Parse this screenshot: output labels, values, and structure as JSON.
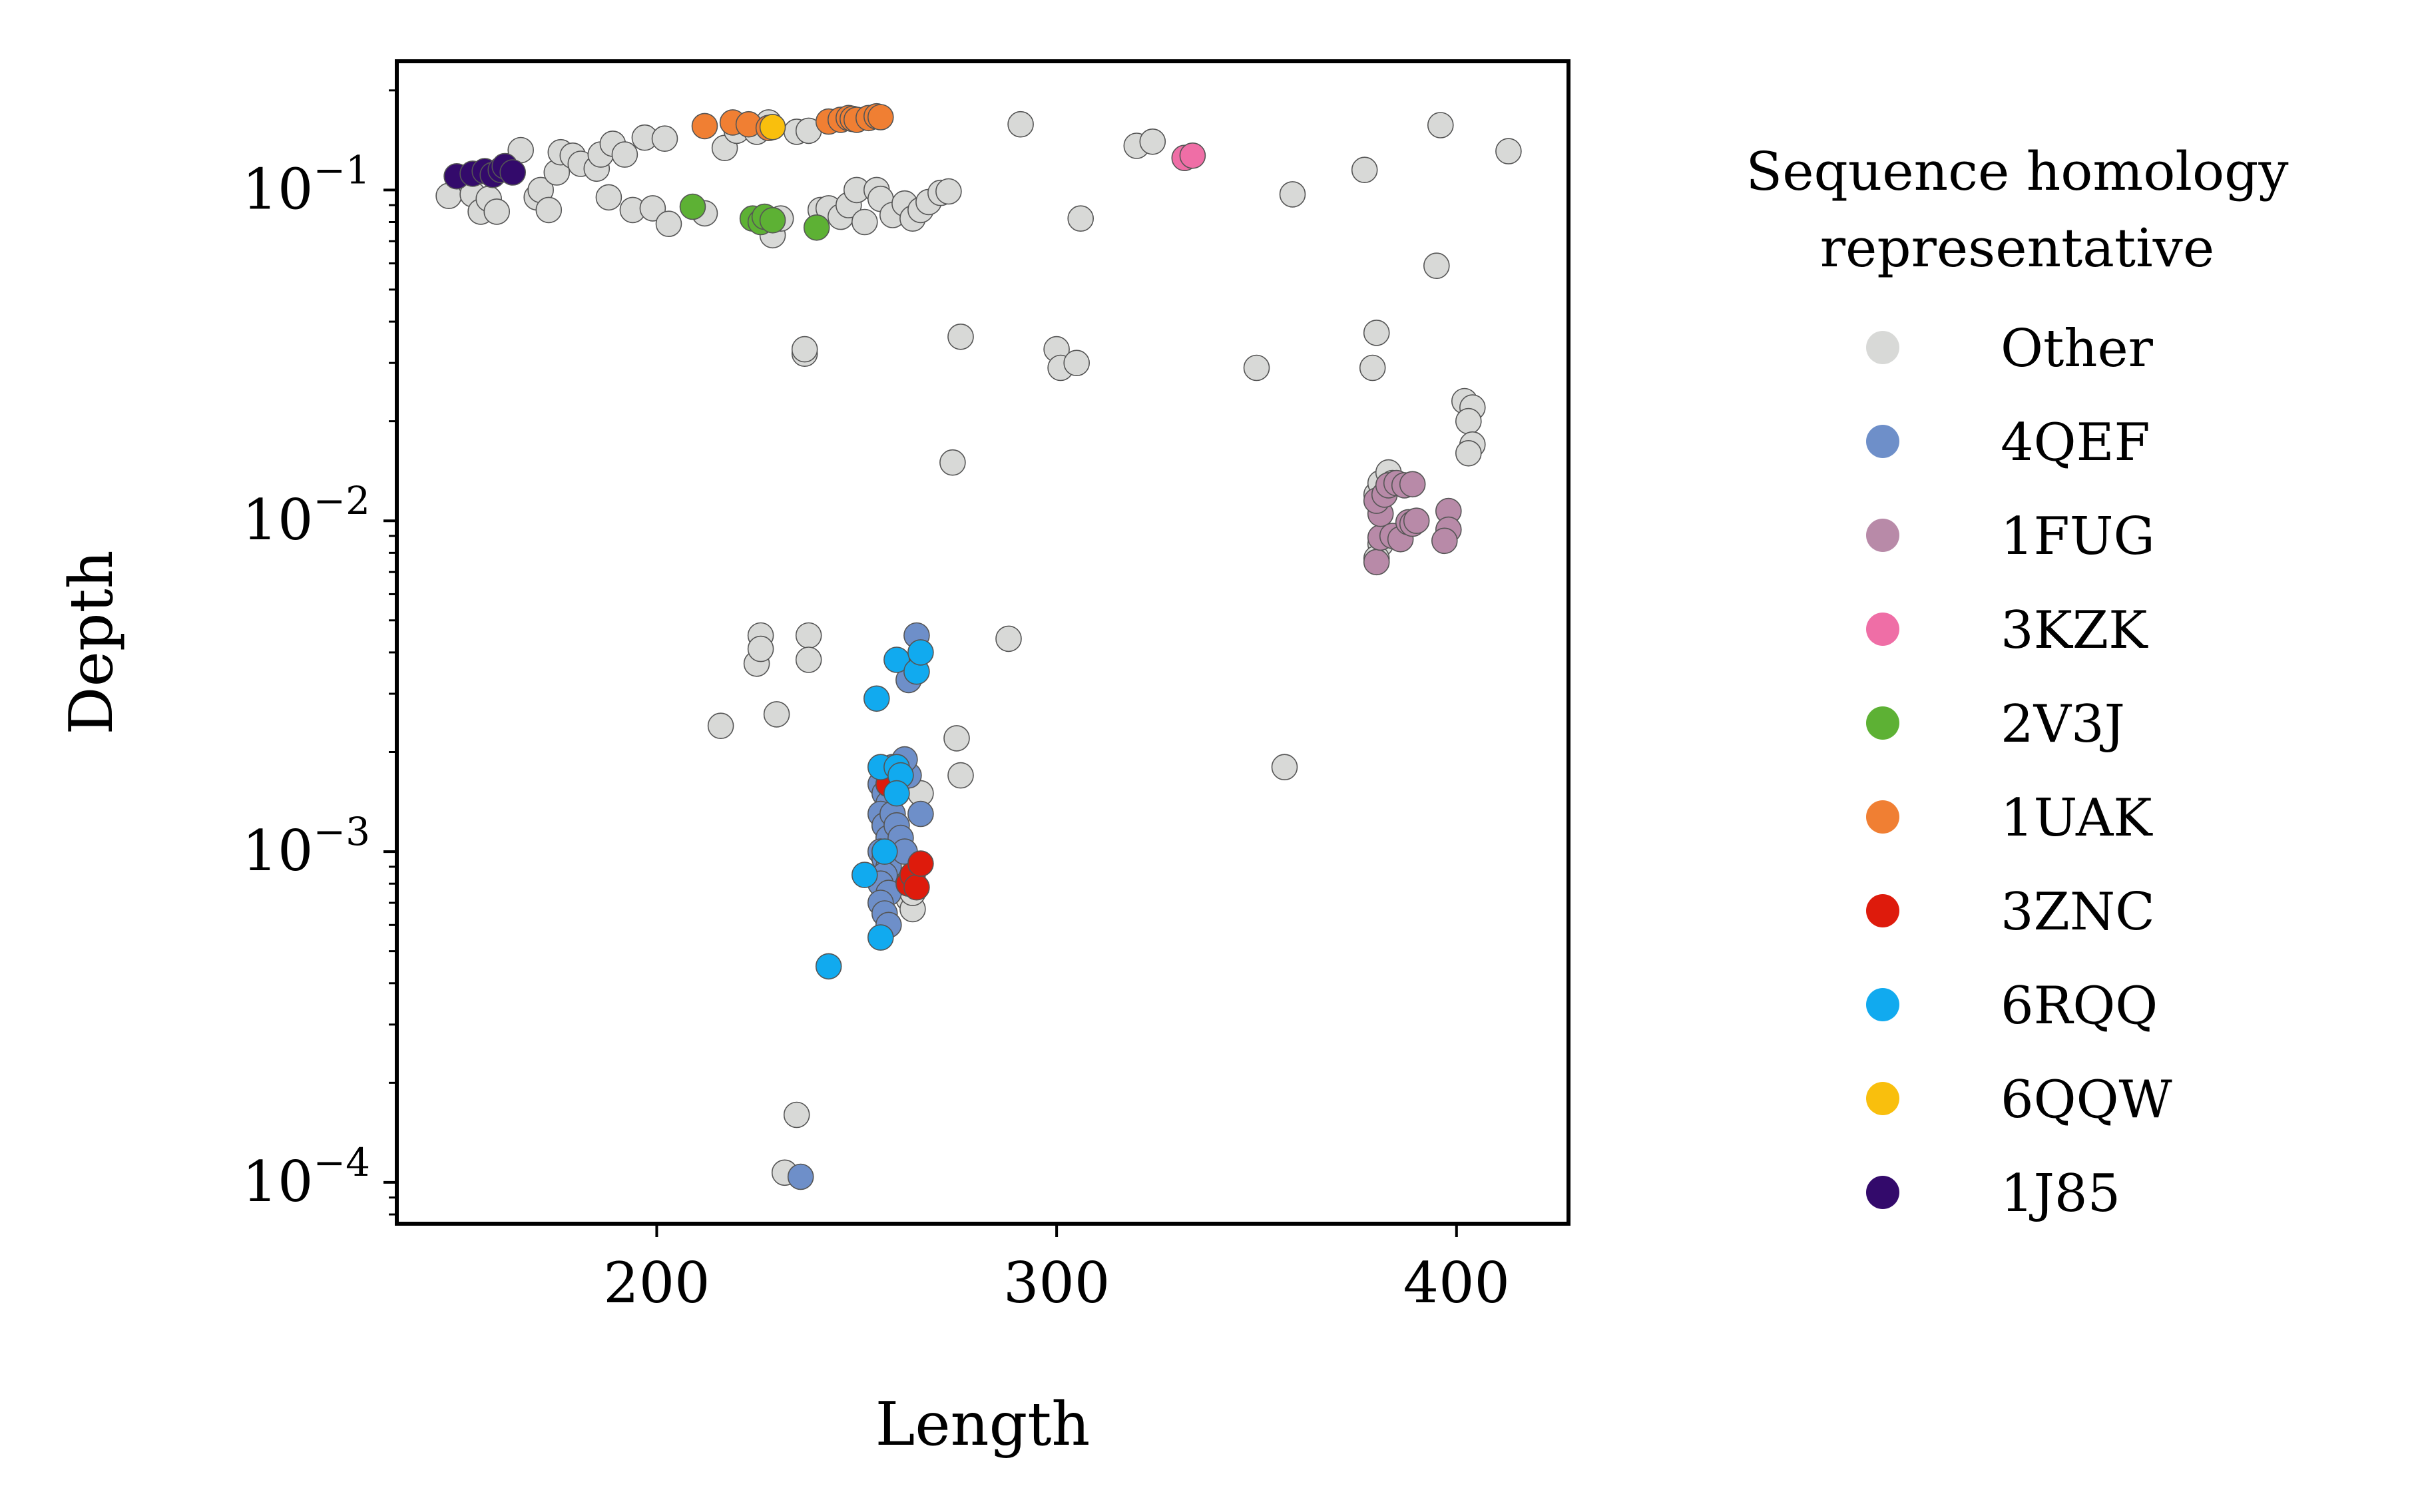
{
  "chart_data": {
    "type": "scatter",
    "xlabel": "Length",
    "ylabel": "Depth",
    "xlim": [
      135,
      428
    ],
    "ylim": [
      7.5e-05,
      0.245
    ],
    "yscale": "log",
    "xticks": [
      {
        "value": 200,
        "label": "200"
      },
      {
        "value": 300,
        "label": "300"
      },
      {
        "value": 400,
        "label": "400"
      }
    ],
    "yticks": [
      {
        "value": 0.0001,
        "base": "10",
        "exp": "−4"
      },
      {
        "value": 0.001,
        "base": "10",
        "exp": "−3"
      },
      {
        "value": 0.01,
        "base": "10",
        "exp": "−2"
      },
      {
        "value": 0.1,
        "base": "10",
        "exp": "−1"
      }
    ],
    "grid": false,
    "legend": {
      "title_line1": "Sequence homology",
      "title_line2": "representative",
      "position": "right, outside plot"
    },
    "series": [
      {
        "name": "Other",
        "color": "#d8d9d7",
        "points": [
          [
            148,
            0.096
          ],
          [
            154,
            0.097
          ],
          [
            156,
            0.086
          ],
          [
            158,
            0.094
          ],
          [
            160,
            0.086
          ],
          [
            163,
            0.118
          ],
          [
            166,
            0.132
          ],
          [
            170,
            0.095
          ],
          [
            171,
            0.1
          ],
          [
            173,
            0.087
          ],
          [
            175,
            0.113
          ],
          [
            176,
            0.13
          ],
          [
            179,
            0.127
          ],
          [
            181,
            0.12
          ],
          [
            185,
            0.116
          ],
          [
            186,
            0.128
          ],
          [
            188,
            0.095
          ],
          [
            189,
            0.138
          ],
          [
            192,
            0.128
          ],
          [
            194,
            0.087
          ],
          [
            197,
            0.144
          ],
          [
            199,
            0.088
          ],
          [
            202,
            0.143
          ],
          [
            203,
            0.079
          ],
          [
            212,
            0.085
          ],
          [
            217,
            0.134
          ],
          [
            220,
            0.151
          ],
          [
            225,
            0.15
          ],
          [
            228,
            0.16
          ],
          [
            229,
            0.073
          ],
          [
            231,
            0.082
          ],
          [
            235,
            0.15
          ],
          [
            238,
            0.151
          ],
          [
            241,
            0.087
          ],
          [
            243,
            0.088
          ],
          [
            246,
            0.083
          ],
          [
            248,
            0.09
          ],
          [
            250,
            0.1
          ],
          [
            252,
            0.08
          ],
          [
            255,
            0.1
          ],
          [
            256,
            0.094
          ],
          [
            259,
            0.084
          ],
          [
            262,
            0.091
          ],
          [
            264,
            0.082
          ],
          [
            266,
            0.087
          ],
          [
            268,
            0.092
          ],
          [
            271,
            0.098
          ],
          [
            273,
            0.099
          ],
          [
            306,
            0.082
          ],
          [
            291,
            0.158
          ],
          [
            320,
            0.136
          ],
          [
            324,
            0.14
          ],
          [
            359,
            0.097
          ],
          [
            377,
            0.115
          ],
          [
            396,
            0.157
          ],
          [
            413,
            0.131
          ],
          [
            395,
            0.059
          ],
          [
            237,
            0.032
          ],
          [
            237,
            0.033
          ],
          [
            276,
            0.036
          ],
          [
            300,
            0.033
          ],
          [
            301,
            0.029
          ],
          [
            305,
            0.03
          ],
          [
            350,
            0.029
          ],
          [
            379,
            0.029
          ],
          [
            380,
            0.037
          ],
          [
            274,
            0.015
          ],
          [
            402,
            0.023
          ],
          [
            404,
            0.022
          ],
          [
            403,
            0.02
          ],
          [
            404,
            0.017
          ],
          [
            403,
            0.016
          ],
          [
            380,
            0.012
          ],
          [
            381,
            0.013
          ],
          [
            383,
            0.014
          ],
          [
            384,
            0.013
          ],
          [
            381,
            0.0085
          ],
          [
            380,
            0.0077
          ],
          [
            226,
            0.0045
          ],
          [
            225,
            0.0037
          ],
          [
            226,
            0.0041
          ],
          [
            238,
            0.0045
          ],
          [
            238,
            0.0038
          ],
          [
            216,
            0.0024
          ],
          [
            230,
            0.0026
          ],
          [
            275,
            0.0022
          ],
          [
            276,
            0.0017
          ],
          [
            266,
            0.0015
          ],
          [
            357,
            0.0018
          ],
          [
            288,
            0.0044
          ],
          [
            235,
            0.00016
          ],
          [
            232,
            0.000107
          ],
          [
            257,
            0.0012
          ],
          [
            258,
            0.0011
          ],
          [
            259,
            0.001
          ],
          [
            261,
            0.0009
          ],
          [
            262,
            0.0008
          ],
          [
            263,
            0.00072
          ],
          [
            264,
            0.00067
          ],
          [
            264,
            0.00075
          ]
        ]
      },
      {
        "name": "4QEF",
        "color": "#6e8fc9",
        "points": [
          [
            236,
            0.000104
          ],
          [
            265,
            0.0045
          ],
          [
            263,
            0.0033
          ],
          [
            266,
            0.0013
          ],
          [
            256,
            0.0016
          ],
          [
            257,
            0.0015
          ],
          [
            258,
            0.0014
          ],
          [
            256,
            0.0013
          ],
          [
            257,
            0.0012
          ],
          [
            258,
            0.0011
          ],
          [
            256,
            0.001
          ],
          [
            257,
            0.00095
          ],
          [
            258,
            0.0009
          ],
          [
            257,
            0.00085
          ],
          [
            256,
            0.0008
          ],
          [
            258,
            0.00075
          ],
          [
            256,
            0.0007
          ],
          [
            257,
            0.00065
          ],
          [
            258,
            0.0006
          ],
          [
            259,
            0.0013
          ],
          [
            260,
            0.0012
          ],
          [
            261,
            0.0011
          ],
          [
            262,
            0.001
          ],
          [
            263,
            0.0017
          ],
          [
            262,
            0.0019
          ],
          [
            259,
            0.0018
          ],
          [
            258,
            0.0016
          ]
        ]
      },
      {
        "name": "1FUG",
        "color": "#b88aa8",
        "points": [
          [
            380,
            0.0075
          ],
          [
            381,
            0.0089
          ],
          [
            381,
            0.0105
          ],
          [
            380,
            0.0115
          ],
          [
            382,
            0.012
          ],
          [
            383,
            0.0128
          ],
          [
            385,
            0.013
          ],
          [
            387,
            0.0128
          ],
          [
            389,
            0.0129
          ],
          [
            384,
            0.009
          ],
          [
            386,
            0.0088
          ],
          [
            388,
            0.0099
          ],
          [
            389,
            0.0098
          ],
          [
            390,
            0.01
          ],
          [
            398,
            0.0107
          ],
          [
            398,
            0.0094
          ],
          [
            397,
            0.0087
          ]
        ]
      },
      {
        "name": "3KZK",
        "color": "#ef6ea6",
        "points": [
          [
            332,
            0.125
          ],
          [
            334,
            0.127
          ]
        ]
      },
      {
        "name": "2V3J",
        "color": "#5db134",
        "points": [
          [
            209,
            0.089
          ],
          [
            224,
            0.082
          ],
          [
            226,
            0.08
          ],
          [
            227,
            0.083
          ],
          [
            229,
            0.081
          ],
          [
            240,
            0.077
          ]
        ]
      },
      {
        "name": "1UAK",
        "color": "#f07f33",
        "points": [
          [
            212,
            0.156
          ],
          [
            219,
            0.16
          ],
          [
            223,
            0.158
          ],
          [
            228,
            0.154
          ],
          [
            243,
            0.161
          ],
          [
            246,
            0.163
          ],
          [
            248,
            0.165
          ],
          [
            249,
            0.164
          ],
          [
            250,
            0.163
          ],
          [
            253,
            0.165
          ],
          [
            255,
            0.167
          ],
          [
            256,
            0.166
          ]
        ]
      },
      {
        "name": "3ZNC",
        "color": "#de1b0c",
        "points": [
          [
            258,
            0.0016
          ],
          [
            263,
            0.0008
          ],
          [
            264,
            0.00085
          ],
          [
            265,
            0.00078
          ],
          [
            266,
            0.00092
          ]
        ]
      },
      {
        "name": "6RQQ",
        "color": "#11aaef",
        "points": [
          [
            243,
            0.00045
          ],
          [
            252,
            0.00085
          ],
          [
            256,
            0.00055
          ],
          [
            255,
            0.0029
          ],
          [
            260,
            0.0038
          ],
          [
            265,
            0.0035
          ],
          [
            266,
            0.004
          ],
          [
            256,
            0.0018
          ],
          [
            260,
            0.0018
          ],
          [
            261,
            0.0017
          ],
          [
            260,
            0.0015
          ],
          [
            257,
            0.001
          ]
        ]
      },
      {
        "name": "6QQW",
        "color": "#f9bf0d",
        "points": [
          [
            229,
            0.155
          ]
        ]
      },
      {
        "name": "1J85",
        "color": "#330a6b",
        "points": [
          [
            150,
            0.11
          ],
          [
            154,
            0.112
          ],
          [
            157,
            0.114
          ],
          [
            159,
            0.111
          ],
          [
            161,
            0.115
          ],
          [
            162,
            0.118
          ],
          [
            164,
            0.113
          ]
        ]
      }
    ]
  }
}
